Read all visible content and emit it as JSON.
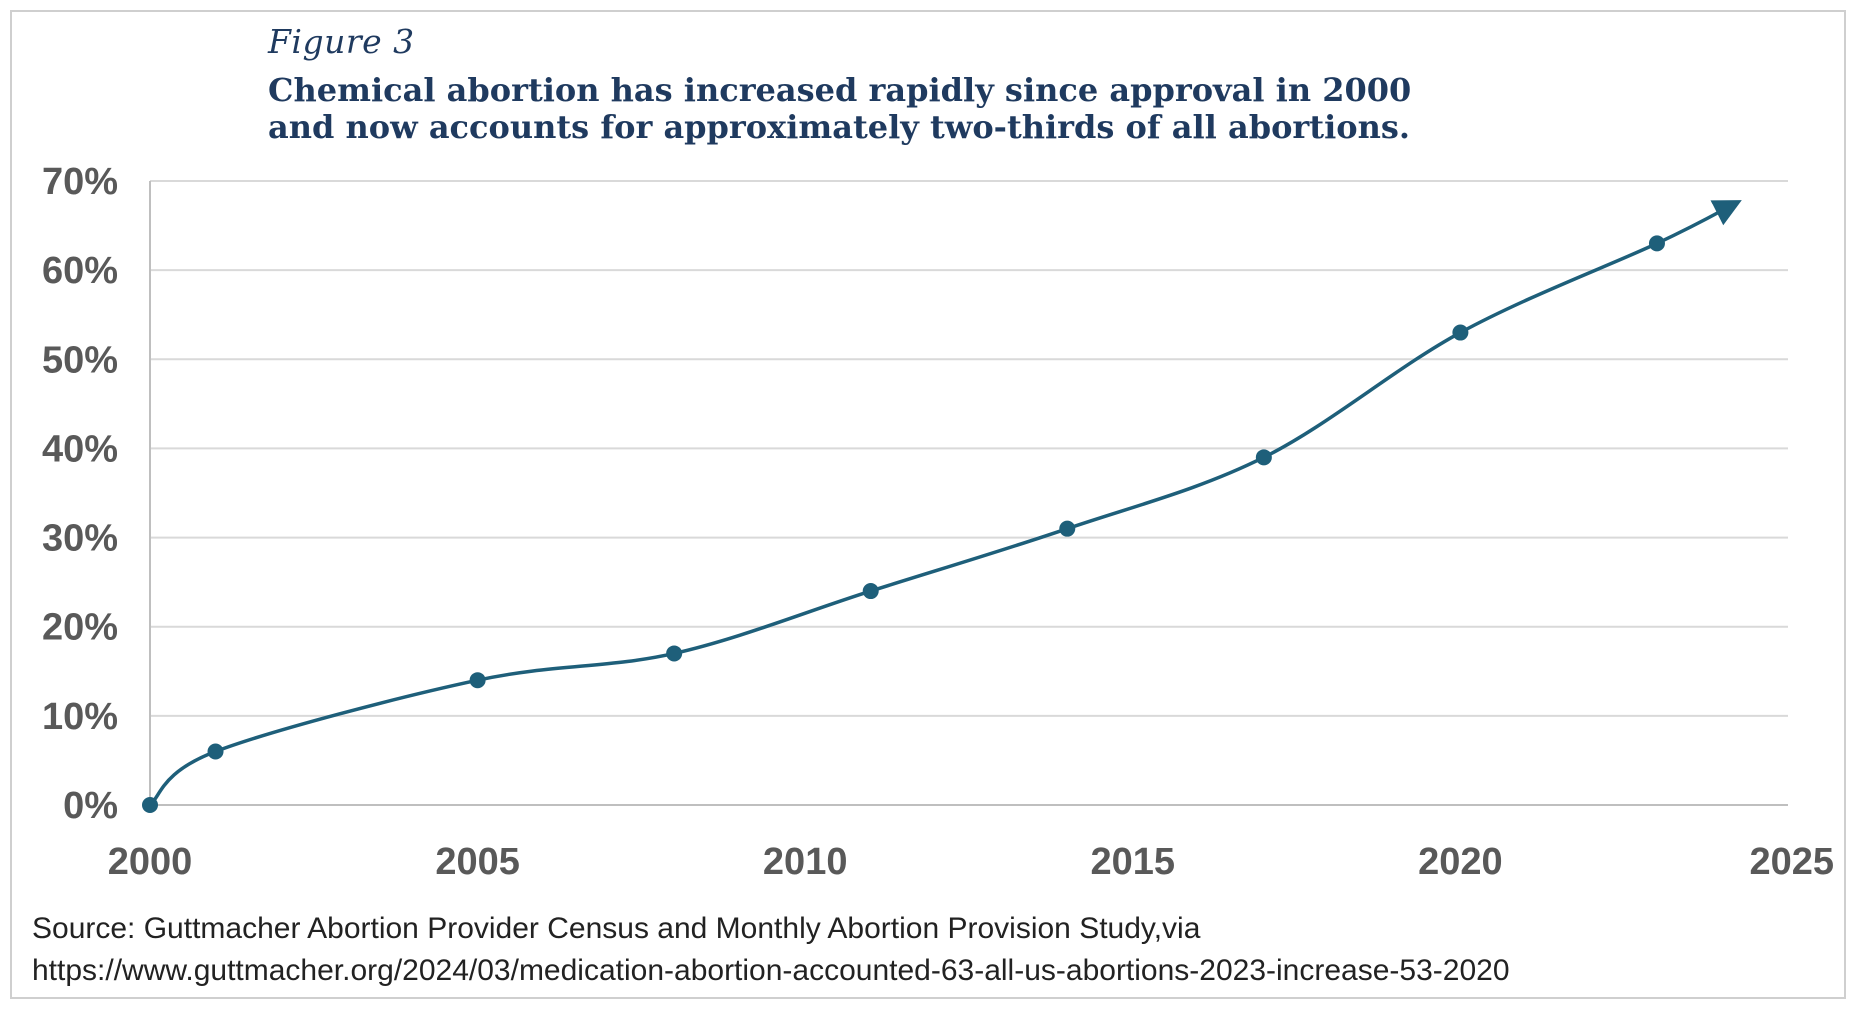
{
  "figure_label": "Figure 3",
  "title_lines": [
    "Chemical abortion has increased rapidly since approval in 2000",
    "and now accounts for approximately two-thirds of all abortions."
  ],
  "source_lines": [
    "Source: Guttmacher Abortion Provider Census and Monthly Abortion Provision Study,via",
    "https://www.guttmacher.org/2024/03/medication-abortion-accounted-63-all-us-abortions-2023-increase-53-2020"
  ],
  "chart_data": {
    "type": "line",
    "x": [
      2000,
      2001,
      2005,
      2008,
      2011,
      2014,
      2017,
      2020,
      2023
    ],
    "series": [
      {
        "values": [
          0,
          6,
          14,
          17,
          24,
          31,
          39,
          53,
          63
        ]
      }
    ],
    "trend_arrow_end": {
      "x": 2024.2,
      "y": 67.5
    },
    "xlim": [
      2000,
      2025
    ],
    "ylim": [
      0,
      70
    ],
    "x_ticks": [
      2000,
      2005,
      2010,
      2015,
      2020,
      2025
    ],
    "x_tick_labels": [
      "2000",
      "2005",
      "2010",
      "2015",
      "2020",
      "2025"
    ],
    "y_ticks": [
      0,
      10,
      20,
      30,
      40,
      50,
      60,
      70
    ],
    "y_tick_labels": [
      "0%",
      "10%",
      "20%",
      "30%",
      "40%",
      "50%",
      "60%",
      "70%"
    ],
    "grid": true,
    "colors": {
      "line": "#1e5f7a",
      "grid": "#d9d9d9",
      "axis": "#bfbfbf",
      "tick_text": "#595959"
    }
  }
}
